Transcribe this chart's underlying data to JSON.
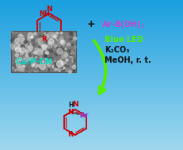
{
  "bg_color_top": "#1a9fdf",
  "bg_color_bottom": "#a0d8ef",
  "arrow_color": "#55ee00",
  "reactant1_color": "#cc0000",
  "reactant2_color": "#cc44cc",
  "product_color": "#cc0000",
  "product_n_color": "#cc0000",
  "product_nh_color": "#111111",
  "product_ar_color": "#9933cc",
  "catalyst_color": "#00ddcc",
  "condition1_color": "#55ee00",
  "condition_text_color": "#111111",
  "figsize": [
    2.31,
    1.89
  ],
  "dpi": 100,
  "catalyst_label": "Cu/P-CN",
  "condition1": "Blue LED",
  "condition2": "K₂CO₃",
  "condition3": "MeOH, r. t."
}
